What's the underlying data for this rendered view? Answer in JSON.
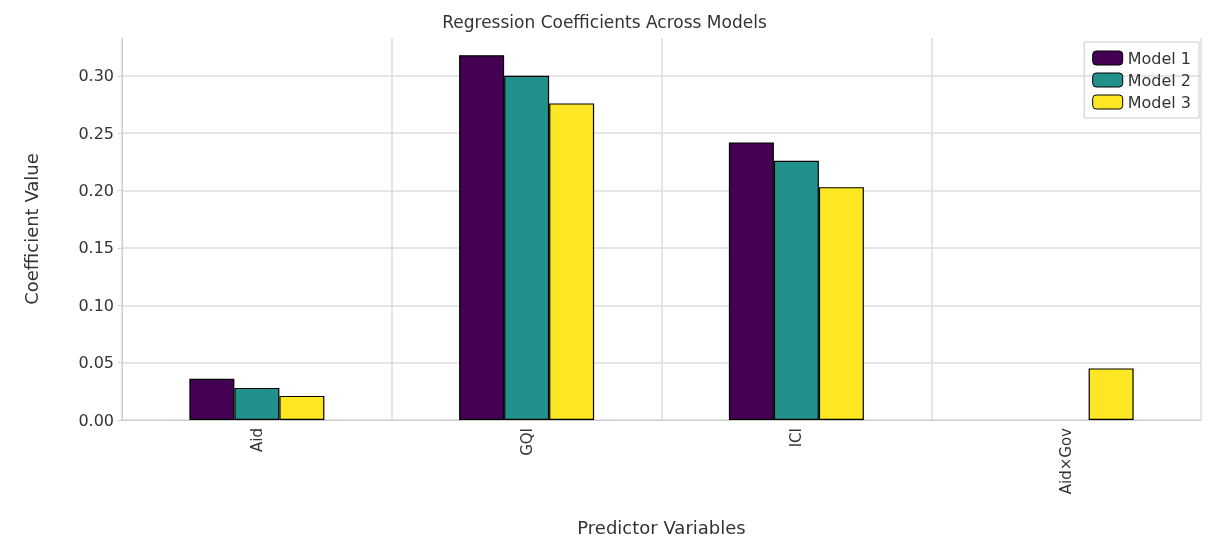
{
  "chart_data": {
    "type": "bar",
    "title": "Regression Coefficients Across Models",
    "xlabel": "Predictor Variables",
    "ylabel": "Coefficient Value",
    "categories": [
      "Aid",
      "GQI",
      "ICI",
      "Aid×Gov"
    ],
    "series": [
      {
        "name": "Model 1",
        "color": "#440154",
        "values": [
          0.036,
          0.318,
          0.242,
          null
        ]
      },
      {
        "name": "Model 2",
        "color": "#21918c",
        "values": [
          0.028,
          0.3,
          0.226,
          null
        ]
      },
      {
        "name": "Model 3",
        "color": "#fde725",
        "values": [
          0.021,
          0.276,
          0.203,
          0.045
        ]
      }
    ],
    "ylim": [
      0,
      0.333
    ],
    "yticks": [
      {
        "value": 0,
        "label": "0.00"
      },
      0.05,
      {
        "value": 0.1,
        "label": "0.10"
      },
      0.15,
      {
        "value": 0.2,
        "label": "0.20"
      },
      0.25,
      {
        "value": 0.3,
        "label": "0.30"
      }
    ],
    "grid": true,
    "legend": "top right"
  }
}
